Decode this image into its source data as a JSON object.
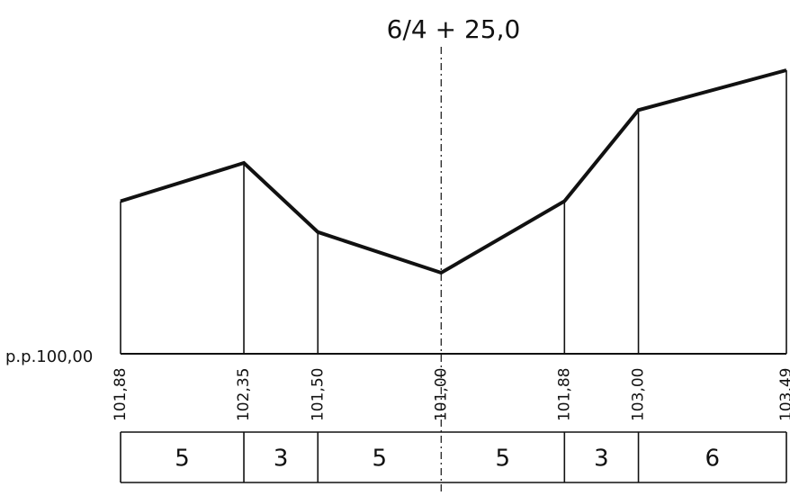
{
  "station_label": "6/4 + 25,0",
  "datum_label": "p.p.100,00",
  "points": [
    {
      "elevation": 101.88,
      "label": "101,88"
    },
    {
      "elevation": 102.35,
      "label": "102,35"
    },
    {
      "elevation": 101.5,
      "label": "101,50"
    },
    {
      "elevation": 101.0,
      "label": "101,00"
    },
    {
      "elevation": 101.88,
      "label": "101,88"
    },
    {
      "elevation": 103.0,
      "label": "103,00"
    },
    {
      "elevation": 103.49,
      "label": "103,49"
    }
  ],
  "distances": [
    "5",
    "3",
    "5",
    "5",
    "3",
    "6"
  ],
  "axis_point_index": 3
}
